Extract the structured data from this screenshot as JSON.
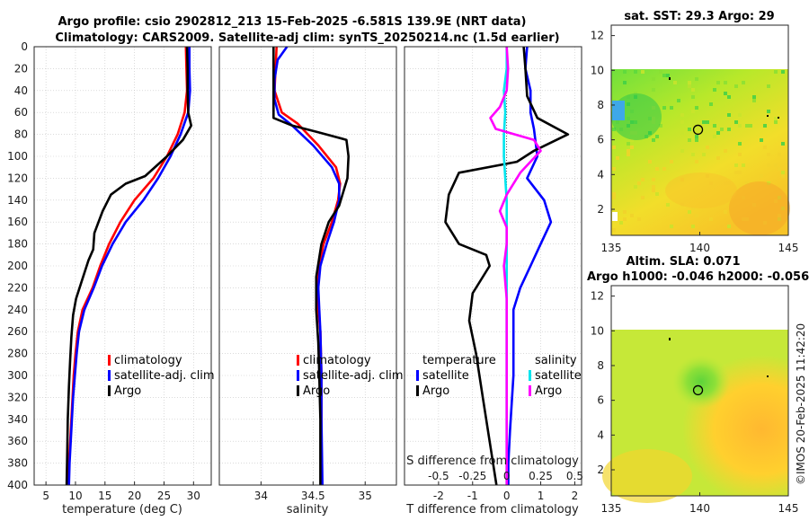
{
  "header": {
    "title_line1": "Argo profile: csio 2902812_213 15-Feb-2025 -6.581S 139.9E (NRT data)",
    "title_line2": "Climatology: CARS2009. Satellite-adj clim: synTS_20250214.nc (1.5d earlier)"
  },
  "stamp": "©IMOS 20-Feb-2025 11:42:20",
  "colors": {
    "climatology": "#ff0000",
    "satellite": "#0000ff",
    "argo": "#000000",
    "sat_salinity": "#00e5ee",
    "argo_salinity": "#ff00ff",
    "grid": "#b0b0b0"
  },
  "chart_data": [
    {
      "type": "line",
      "name": "temperature-profile",
      "xlabel": "temperature (deg C)",
      "ylabel": "",
      "xlim": [
        3,
        33
      ],
      "ylim": [
        400,
        0
      ],
      "xticks": [
        5,
        10,
        15,
        20,
        25,
        30
      ],
      "yticks": [
        0,
        20,
        40,
        60,
        80,
        100,
        120,
        140,
        160,
        180,
        200,
        220,
        240,
        260,
        280,
        300,
        320,
        340,
        360,
        380,
        400
      ],
      "legend": [
        "climatology",
        "satellite-adj. clim",
        "Argo"
      ],
      "series": [
        {
          "name": "climatology",
          "color": "#ff0000",
          "points": [
            [
              28.7,
              0
            ],
            [
              28.8,
              20
            ],
            [
              28.9,
              40
            ],
            [
              28.5,
              60
            ],
            [
              27.3,
              80
            ],
            [
              25.5,
              100
            ],
            [
              23.2,
              120
            ],
            [
              20,
              140
            ],
            [
              17.6,
              160
            ],
            [
              15.7,
              180
            ],
            [
              14.2,
              200
            ],
            [
              12.9,
              220
            ],
            [
              11.2,
              240
            ],
            [
              10.4,
              260
            ],
            [
              10,
              280
            ],
            [
              9.7,
              300
            ],
            [
              9.5,
              320
            ],
            [
              9.3,
              340
            ],
            [
              9.1,
              360
            ],
            [
              8.9,
              380
            ],
            [
              8.8,
              400
            ]
          ]
        },
        {
          "name": "satellite-adj. clim",
          "color": "#0000ff",
          "points": [
            [
              29.3,
              0
            ],
            [
              29.3,
              20
            ],
            [
              29.4,
              40
            ],
            [
              29.1,
              60
            ],
            [
              27.8,
              80
            ],
            [
              26.1,
              100
            ],
            [
              24,
              120
            ],
            [
              21.5,
              140
            ],
            [
              18.5,
              160
            ],
            [
              16.3,
              180
            ],
            [
              14.5,
              200
            ],
            [
              13.1,
              220
            ],
            [
              11.5,
              240
            ],
            [
              10.6,
              260
            ],
            [
              10.2,
              280
            ],
            [
              9.9,
              300
            ],
            [
              9.6,
              320
            ],
            [
              9.4,
              340
            ],
            [
              9.2,
              360
            ],
            [
              9,
              380
            ],
            [
              8.9,
              400
            ]
          ]
        },
        {
          "name": "Argo",
          "color": "#000000",
          "points": [
            [
              28.9,
              0
            ],
            [
              29,
              20
            ],
            [
              29,
              40
            ],
            [
              29.1,
              60
            ],
            [
              29.6,
              72
            ],
            [
              28.2,
              85
            ],
            [
              25.5,
              100
            ],
            [
              21.8,
              118
            ],
            [
              18.5,
              125
            ],
            [
              16,
              135
            ],
            [
              14.6,
              150
            ],
            [
              13.2,
              170
            ],
            [
              13,
              185
            ],
            [
              12.2,
              195
            ],
            [
              11,
              215
            ],
            [
              10.1,
              230
            ],
            [
              9.6,
              245
            ],
            [
              9.3,
              265
            ],
            [
              9.1,
              285
            ],
            [
              8.9,
              310
            ],
            [
              8.7,
              340
            ],
            [
              8.6,
              370
            ],
            [
              8.5,
              400
            ]
          ]
        }
      ]
    },
    {
      "type": "line",
      "name": "salinity-profile",
      "xlabel": "salinity",
      "xlim": [
        33.6,
        35.3
      ],
      "ylim": [
        400,
        0
      ],
      "xticks": [
        34,
        34.5,
        35
      ],
      "legend": [
        "climatology",
        "satellite-adj. clim",
        "Argo"
      ],
      "series": [
        {
          "name": "climatology",
          "color": "#ff0000",
          "points": [
            [
              34.15,
              0
            ],
            [
              34.14,
              20
            ],
            [
              34.13,
              40
            ],
            [
              34.2,
              60
            ],
            [
              34.35,
              70
            ],
            [
              34.55,
              90
            ],
            [
              34.72,
              110
            ],
            [
              34.76,
              125
            ],
            [
              34.74,
              140
            ],
            [
              34.68,
              160
            ],
            [
              34.6,
              180
            ],
            [
              34.56,
              200
            ],
            [
              34.54,
              220
            ],
            [
              34.55,
              240
            ],
            [
              34.57,
              260
            ],
            [
              34.58,
              300
            ],
            [
              34.58,
              340
            ],
            [
              34.58,
              400
            ]
          ]
        },
        {
          "name": "satellite-adj. clim",
          "color": "#0000ff",
          "points": [
            [
              34.25,
              0
            ],
            [
              34.16,
              12
            ],
            [
              34.13,
              30
            ],
            [
              34.13,
              48
            ],
            [
              34.17,
              62
            ],
            [
              34.3,
              72
            ],
            [
              34.5,
              90
            ],
            [
              34.68,
              110
            ],
            [
              34.75,
              125
            ],
            [
              34.75,
              140
            ],
            [
              34.7,
              160
            ],
            [
              34.63,
              180
            ],
            [
              34.57,
              200
            ],
            [
              34.55,
              220
            ],
            [
              34.56,
              240
            ],
            [
              34.57,
              260
            ],
            [
              34.58,
              300
            ],
            [
              34.58,
              340
            ],
            [
              34.59,
              400
            ]
          ]
        },
        {
          "name": "Argo",
          "color": "#000000",
          "points": [
            [
              34.12,
              0
            ],
            [
              34.12,
              20
            ],
            [
              34.12,
              45
            ],
            [
              34.12,
              65
            ],
            [
              34.3,
              72
            ],
            [
              34.55,
              78
            ],
            [
              34.82,
              85
            ],
            [
              34.84,
              100
            ],
            [
              34.83,
              120
            ],
            [
              34.75,
              145
            ],
            [
              34.65,
              160
            ],
            [
              34.58,
              180
            ],
            [
              34.53,
              210
            ],
            [
              34.53,
              240
            ],
            [
              34.55,
              270
            ],
            [
              34.56,
              300
            ],
            [
              34.57,
              340
            ],
            [
              34.57,
              400
            ]
          ]
        }
      ]
    },
    {
      "type": "line",
      "name": "difference-profile",
      "xlabel": "T difference from climatology",
      "top_axis_label": "S difference from climatology",
      "xlim": [
        -3,
        2.2
      ],
      "ylim": [
        400,
        0
      ],
      "xticks": [
        -2,
        -1,
        0,
        1,
        2
      ],
      "top_axis_range": [
        -0.75,
        0.55
      ],
      "top_xticks": [
        -0.5,
        -0.25,
        0,
        0.25,
        0.5
      ],
      "top_tick_labels": [
        "-0.5",
        "-0.25",
        "0",
        "0.25",
        "0.5"
      ],
      "legend_temperature_title": "temperature",
      "legend_salinity_title": "salinity",
      "legend_temperature": [
        "satellite",
        "Argo"
      ],
      "legend_salinity": [
        "satellite",
        "Argo"
      ],
      "series": [
        {
          "name": "temperature satellite",
          "axis": "T",
          "color": "#0000ff",
          "points": [
            [
              0.6,
              0
            ],
            [
              0.55,
              20
            ],
            [
              0.7,
              40
            ],
            [
              0.7,
              60
            ],
            [
              0.8,
              75
            ],
            [
              0.9,
              100
            ],
            [
              0.6,
              120
            ],
            [
              1.1,
              140
            ],
            [
              1.3,
              160
            ],
            [
              1.0,
              180
            ],
            [
              0.7,
              200
            ],
            [
              0.4,
              220
            ],
            [
              0.2,
              240
            ],
            [
              0.2,
              260
            ],
            [
              0.2,
              300
            ],
            [
              0.1,
              350
            ],
            [
              0.05,
              380
            ],
            [
              0.05,
              400
            ]
          ]
        },
        {
          "name": "temperature Argo",
          "axis": "T",
          "color": "#000000",
          "points": [
            [
              0.5,
              0
            ],
            [
              0.55,
              20
            ],
            [
              0.6,
              45
            ],
            [
              0.9,
              65
            ],
            [
              1.8,
              80
            ],
            [
              0.8,
              95
            ],
            [
              0.3,
              105
            ],
            [
              -1.4,
              115
            ],
            [
              -1.7,
              135
            ],
            [
              -1.8,
              160
            ],
            [
              -1.4,
              180
            ],
            [
              -0.6,
              190
            ],
            [
              -0.5,
              200
            ],
            [
              -1.0,
              225
            ],
            [
              -1.1,
              250
            ],
            [
              -0.9,
              280
            ],
            [
              -0.7,
              320
            ],
            [
              -0.5,
              360
            ],
            [
              -0.3,
              400
            ]
          ]
        },
        {
          "name": "salinity satellite",
          "axis": "S",
          "color": "#00e5ee",
          "points": [
            [
              0,
              0
            ],
            [
              0,
              20
            ],
            [
              -0.02,
              40
            ],
            [
              -0.01,
              60
            ],
            [
              -0.02,
              80
            ],
            [
              -0.02,
              100
            ],
            [
              -0.01,
              120
            ],
            [
              0,
              140
            ],
            [
              0,
              160
            ],
            [
              0,
              180
            ],
            [
              0,
              200
            ],
            [
              0,
              220
            ],
            [
              0,
              240
            ],
            [
              0,
              260
            ],
            [
              0,
              300
            ],
            [
              0,
              340
            ],
            [
              0,
              400
            ]
          ]
        },
        {
          "name": "salinity Argo",
          "axis": "S",
          "color": "#ff00ff",
          "points": [
            [
              0,
              0
            ],
            [
              0.01,
              20
            ],
            [
              0,
              40
            ],
            [
              -0.05,
              55
            ],
            [
              -0.12,
              65
            ],
            [
              -0.08,
              75
            ],
            [
              0.2,
              85
            ],
            [
              0.25,
              95
            ],
            [
              0.1,
              115
            ],
            [
              0,
              135
            ],
            [
              -0.05,
              150
            ],
            [
              0,
              165
            ],
            [
              0,
              180
            ],
            [
              -0.02,
              200
            ],
            [
              0,
              230
            ],
            [
              0,
              260
            ],
            [
              0,
              300
            ],
            [
              0,
              350
            ],
            [
              0,
              400
            ]
          ]
        }
      ]
    },
    {
      "type": "heatmap",
      "name": "sst-map",
      "title": "sat. SST: 29.3 Argo: 29",
      "xlim": [
        135,
        145
      ],
      "ylim": [
        0.5,
        12.6
      ],
      "xticks": [
        135,
        140,
        145
      ],
      "yticks": [
        2,
        4,
        6,
        8,
        10,
        12
      ],
      "data_extent_lat": [
        0.5,
        10
      ],
      "marker": {
        "lon": 139.9,
        "lat": 6.58
      }
    },
    {
      "type": "heatmap",
      "name": "sla-map",
      "title": "Altim. SLA: 0.071",
      "subtitle": "Argo h1000: -0.046 h2000: -0.056",
      "xlim": [
        135,
        145
      ],
      "ylim": [
        0.5,
        12.6
      ],
      "xticks": [
        135,
        140,
        145
      ],
      "yticks": [
        2,
        4,
        6,
        8,
        10,
        12
      ],
      "data_extent_lat": [
        0.5,
        10
      ],
      "marker": {
        "lon": 139.9,
        "lat": 6.58
      }
    }
  ]
}
